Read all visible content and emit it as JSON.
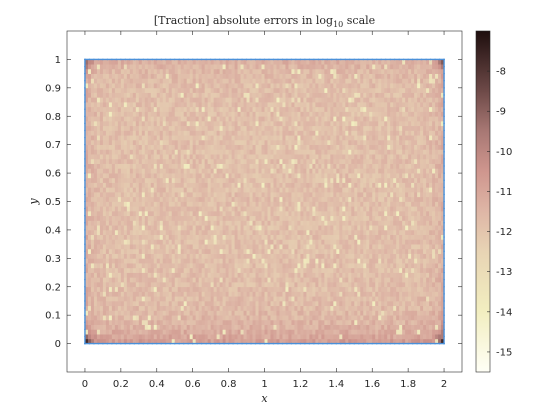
{
  "chart_data": {
    "type": "heatmap",
    "title": {
      "prefix": "[Traction] absolute errors in log",
      "subscript": "10",
      "suffix": " scale"
    },
    "xlabel": "x",
    "ylabel": "y",
    "xlim": [
      -0.1,
      2.1
    ],
    "ylim": [
      -0.1,
      1.1
    ],
    "xticks": [
      0,
      0.2,
      0.4,
      0.6,
      0.8,
      1,
      1.2,
      1.4,
      1.6,
      1.8,
      2
    ],
    "xtick_labels": [
      "0",
      "0.2",
      "0.4",
      "0.6",
      "0.8",
      "1",
      "1.2",
      "1.4",
      "1.6",
      "1.8",
      "2"
    ],
    "yticks": [
      0,
      0.1,
      0.2,
      0.3,
      0.4,
      0.5,
      0.6,
      0.7,
      0.8,
      0.9,
      1
    ],
    "ytick_labels": [
      "0",
      "0.1",
      "0.2",
      "0.3",
      "0.4",
      "0.5",
      "0.6",
      "0.7",
      "0.8",
      "0.9",
      "1"
    ],
    "domain": {
      "x": [
        0,
        2
      ],
      "y": [
        0,
        1
      ]
    },
    "grid_resolution": [
      120,
      60
    ],
    "colorbar": {
      "range": [
        -15.5,
        -7
      ],
      "ticks": [
        -15,
        -14,
        -13,
        -12,
        -11,
        -10,
        -9,
        -8
      ],
      "tick_labels": [
        "-15",
        "-14",
        "-13",
        "-12",
        "-11",
        "-10",
        "-9",
        "-8"
      ],
      "colormap": "pink",
      "stops": [
        {
          "value": -15.5,
          "color": "#fffff6"
        },
        {
          "value": -14,
          "color": "#f2eec0"
        },
        {
          "value": -12.5,
          "color": "#e8d4b4"
        },
        {
          "value": -11.5,
          "color": "#deb6a6"
        },
        {
          "value": -10.5,
          "color": "#cf968e"
        },
        {
          "value": -9.5,
          "color": "#a87874"
        },
        {
          "value": -8.5,
          "color": "#6e4a48"
        },
        {
          "value": -7,
          "color": "#1e0e0e"
        }
      ]
    },
    "field_summary": {
      "typical_log10_error": -11.8,
      "bottom_edge_log10_error": -10.6,
      "corner_log10_error": -8.0,
      "min_speckle_log10_error": -14.0
    },
    "boundary_color": "#4a90d9",
    "grid": false
  }
}
